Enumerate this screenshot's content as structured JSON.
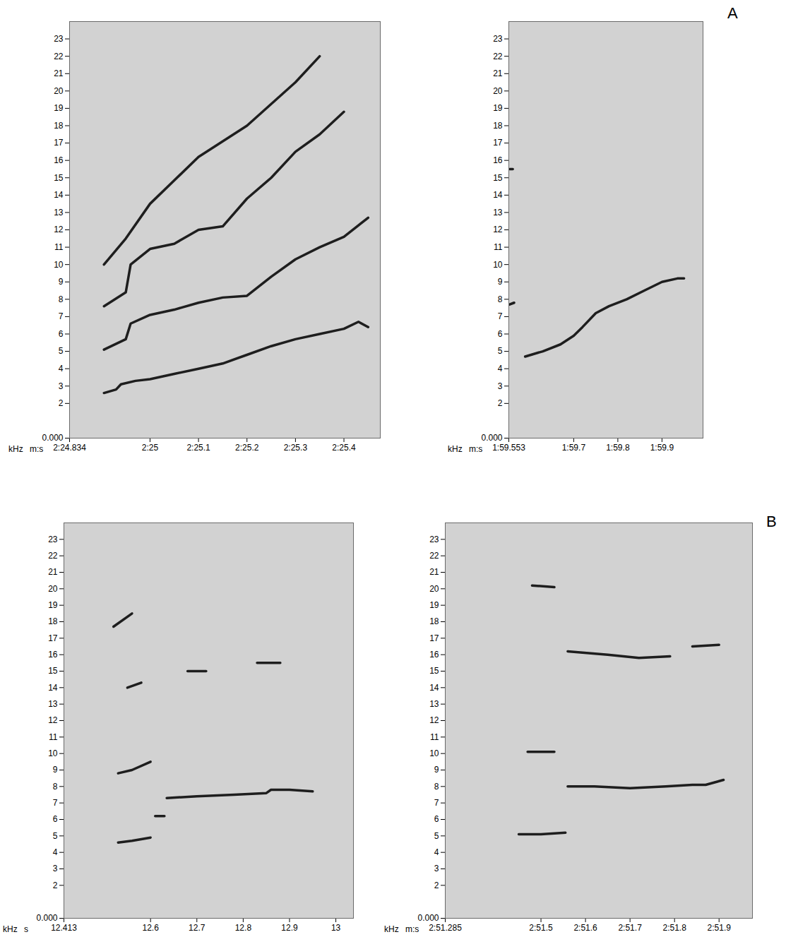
{
  "chart_data": [
    {
      "type": "line",
      "panel": "A",
      "xlabel": "m:s",
      "ylabel": "kHz",
      "color": "#1e1e1e",
      "xlim": [
        144.834,
        145.475
      ],
      "xticks": [
        {
          "value": 144.834,
          "label": "2:24.834"
        },
        {
          "value": 145.0,
          "label": "2:25"
        },
        {
          "value": 145.1,
          "label": "2:25.1"
        },
        {
          "value": 145.2,
          "label": "2:25.2"
        },
        {
          "value": 145.3,
          "label": "2:25.3"
        },
        {
          "value": 145.4,
          "label": "2:25.4"
        }
      ],
      "ylim": [
        0,
        24
      ],
      "yticks": [
        {
          "value": 0,
          "label": "0.000"
        },
        2,
        3,
        4,
        5,
        6,
        7,
        8,
        9,
        10,
        11,
        12,
        13,
        14,
        15,
        16,
        17,
        18,
        19,
        20,
        21,
        22,
        23
      ],
      "series": [
        {
          "x": [
            144.905,
            144.93,
            144.94,
            144.97,
            145.0,
            145.05,
            145.1,
            145.15,
            145.2,
            145.25,
            145.3,
            145.35,
            145.4,
            145.43,
            145.45
          ],
          "values": [
            2.6,
            2.8,
            3.1,
            3.3,
            3.4,
            3.7,
            4.0,
            4.3,
            4.8,
            5.3,
            5.7,
            6.0,
            6.3,
            6.7,
            6.4
          ]
        },
        {
          "x": [
            144.905,
            144.95,
            144.96,
            145.0,
            145.05,
            145.1,
            145.15,
            145.2,
            145.25,
            145.3,
            145.35,
            145.4,
            145.45
          ],
          "values": [
            5.1,
            5.7,
            6.6,
            7.1,
            7.4,
            7.8,
            8.1,
            8.2,
            9.3,
            10.3,
            11.0,
            11.6,
            12.7
          ]
        },
        {
          "x": [
            144.905,
            144.95,
            144.96,
            145.0,
            145.05,
            145.1,
            145.15,
            145.2,
            145.25,
            145.3,
            145.35,
            145.4
          ],
          "values": [
            7.6,
            8.4,
            10.0,
            10.9,
            11.2,
            12.0,
            12.2,
            13.8,
            15.0,
            16.5,
            17.5,
            18.8
          ]
        },
        {
          "x": [
            144.905,
            144.95,
            145.0,
            145.1,
            145.2,
            145.3,
            145.35
          ],
          "values": [
            10.0,
            11.5,
            13.5,
            16.2,
            18.0,
            20.5,
            22.0
          ]
        }
      ]
    },
    {
      "type": "line",
      "panel": "A",
      "xlabel": "m:s",
      "ylabel": "kHz",
      "color": "#1e1e1e",
      "xlim": [
        119.553,
        119.993
      ],
      "xticks": [
        {
          "value": 119.553,
          "label": "1:59.553"
        },
        {
          "value": 119.7,
          "label": "1:59.7"
        },
        {
          "value": 119.8,
          "label": "1:59.8"
        },
        {
          "value": 119.9,
          "label": "1:59.9"
        }
      ],
      "ylim": [
        0,
        24
      ],
      "yticks": [
        {
          "value": 0,
          "label": "0.000"
        },
        2,
        3,
        4,
        5,
        6,
        7,
        8,
        9,
        10,
        11,
        12,
        13,
        14,
        15,
        16,
        17,
        18,
        19,
        20,
        21,
        22,
        23
      ],
      "series": [
        {
          "x": [
            119.59,
            119.63,
            119.67,
            119.7,
            119.72,
            119.75,
            119.78,
            119.82,
            119.86,
            119.9,
            119.935,
            119.95
          ],
          "values": [
            4.7,
            5.0,
            5.4,
            5.9,
            6.4,
            7.2,
            7.6,
            8.0,
            8.5,
            9.0,
            9.2,
            9.2
          ]
        },
        {
          "x": [
            119.555,
            119.565
          ],
          "values": [
            7.7,
            7.8
          ]
        },
        {
          "x": [
            119.555,
            119.562
          ],
          "values": [
            15.5,
            15.5
          ]
        }
      ]
    },
    {
      "type": "line",
      "panel": "B",
      "xlabel": "s",
      "ylabel": "kHz",
      "color": "#1e1e1e",
      "xlim": [
        12.413,
        13.038
      ],
      "xticks": [
        12.413,
        12.6,
        12.7,
        12.8,
        12.9,
        13
      ],
      "ylim": [
        0,
        24
      ],
      "yticks": [
        {
          "value": 0,
          "label": "0.000"
        },
        2,
        3,
        4,
        5,
        6,
        7,
        8,
        9,
        10,
        11,
        12,
        13,
        14,
        15,
        16,
        17,
        18,
        19,
        20,
        21,
        22,
        23
      ],
      "series": [
        {
          "x": [
            12.53,
            12.56,
            12.6
          ],
          "values": [
            4.6,
            4.7,
            4.9
          ]
        },
        {
          "x": [
            12.61,
            12.63
          ],
          "values": [
            6.2,
            6.2
          ]
        },
        {
          "x": [
            12.635,
            12.7,
            12.78,
            12.85,
            12.86,
            12.9,
            12.95
          ],
          "values": [
            7.3,
            7.4,
            7.5,
            7.6,
            7.8,
            7.8,
            7.7
          ]
        },
        {
          "x": [
            12.53,
            12.56,
            12.6
          ],
          "values": [
            8.8,
            9.0,
            9.5
          ]
        },
        {
          "x": [
            12.55,
            12.58
          ],
          "values": [
            14.0,
            14.3
          ]
        },
        {
          "x": [
            12.52,
            12.56
          ],
          "values": [
            17.7,
            18.5
          ]
        },
        {
          "x": [
            12.68,
            12.72
          ],
          "values": [
            15.0,
            15.0
          ]
        },
        {
          "x": [
            12.83,
            12.88
          ],
          "values": [
            15.5,
            15.5
          ]
        }
      ]
    },
    {
      "type": "line",
      "panel": "B",
      "xlabel": "m:s",
      "ylabel": "kHz",
      "color": "#1e1e1e",
      "xlim": [
        171.285,
        171.975
      ],
      "xticks": [
        {
          "value": 171.285,
          "label": "2:51.285"
        },
        {
          "value": 171.5,
          "label": "2:51.5"
        },
        {
          "value": 171.6,
          "label": "2:51.6"
        },
        {
          "value": 171.7,
          "label": "2:51.7"
        },
        {
          "value": 171.8,
          "label": "2:51.8"
        },
        {
          "value": 171.9,
          "label": "2:51.9"
        }
      ],
      "ylim": [
        0,
        24
      ],
      "yticks": [
        {
          "value": 0,
          "label": "0.000"
        },
        2,
        3,
        4,
        5,
        6,
        7,
        8,
        9,
        10,
        11,
        12,
        13,
        14,
        15,
        16,
        17,
        18,
        19,
        20,
        21,
        22,
        23
      ],
      "series": [
        {
          "x": [
            171.45,
            171.5,
            171.555
          ],
          "values": [
            5.1,
            5.1,
            5.2
          ]
        },
        {
          "x": [
            171.56,
            171.62,
            171.7,
            171.78,
            171.84,
            171.87,
            171.91
          ],
          "values": [
            8.0,
            8.0,
            7.9,
            8.0,
            8.1,
            8.1,
            8.4
          ]
        },
        {
          "x": [
            171.47,
            171.53
          ],
          "values": [
            10.1,
            10.1
          ]
        },
        {
          "x": [
            171.56,
            171.65,
            171.72,
            171.79
          ],
          "values": [
            16.2,
            16.0,
            15.8,
            15.9
          ]
        },
        {
          "x": [
            171.84,
            171.9
          ],
          "values": [
            16.5,
            16.6
          ]
        },
        {
          "x": [
            171.48,
            171.53
          ],
          "values": [
            20.2,
            20.1
          ]
        }
      ]
    }
  ]
}
